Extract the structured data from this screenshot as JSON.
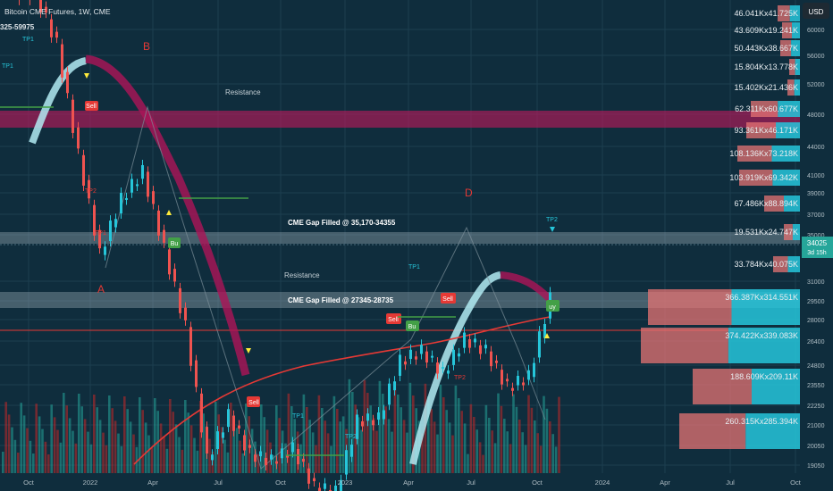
{
  "header": {
    "symbol_title": "Bitcoin CME Futures, 1W, CME",
    "range_text": "325-59975",
    "currency": "USD"
  },
  "price_axis": {
    "ticks": [
      "60000",
      "56000",
      "52000",
      "48000",
      "44000",
      "41000",
      "39000",
      "37000",
      "35000",
      "31000",
      "29500",
      "28000",
      "26400",
      "24800",
      "23550",
      "22250",
      "21000",
      "20050",
      "19050"
    ],
    "current_price": "34025",
    "countdown": "3d 15h"
  },
  "time_axis": {
    "ticks": [
      "Oct",
      "2022",
      "Apr",
      "Jul",
      "Oct",
      "2023",
      "Apr",
      "Jul",
      "Oct",
      "2024",
      "Apr",
      "Jul",
      "Oct"
    ]
  },
  "zones": [
    {
      "label": "Resistance"
    },
    {
      "label": "CME Gap Filled @ 35,170-34355"
    },
    {
      "label": "Resistance"
    },
    {
      "label": "CME Gap Filled @ 27345-28735"
    }
  ],
  "wave_labels": [
    "B",
    "A",
    "D"
  ],
  "signals": [
    "Sell",
    "Bu",
    "Sell",
    "Sell",
    "Bu",
    "uy",
    "Sell"
  ],
  "tp_labels": [
    "TP1",
    "TP1",
    "TP2",
    "TP1",
    "TP1",
    "TP2",
    "TP1",
    "TP2",
    "TP2"
  ],
  "volume_profile": [
    "46.041Kx41.725K",
    "43.609Kx19.241K",
    "50.443Kx38.667K",
    "15.804Kx13.778K",
    "15.402Kx21.436K",
    "62.311Kx60.677K",
    "93.361Kx46.171K",
    "108.136Kx73.218K",
    "103.919Kx69.342K",
    "67.486Kx88.894K",
    "19.531Kx24.747K",
    "33.784Kx40.075K",
    "366.387Kx314.551K",
    "374.422Kx339.083K",
    "188.609Kx209.11K",
    "260.315Kx285.394K"
  ],
  "colors": {
    "background": "#0f2d3d",
    "up": "#26c6da",
    "down": "#ef5350",
    "zone_pink": "#c2185b",
    "zone_gray": "#b0bec5",
    "ribbon_up": "#b2ebf2",
    "ribbon_down": "#ad1457",
    "ma": "#e53935"
  },
  "chart_data": {
    "type": "candlestick",
    "title": "Bitcoin CME Futures, 1W, CME",
    "x_range": [
      "2021-10",
      "2024-11"
    ],
    "y_range": [
      18500,
      63000
    ],
    "current_price": 34025,
    "series": [
      {
        "name": "",
        "x": [
          "2021-10",
          "2021-11",
          "2021-12",
          "2022-01",
          "2022-02",
          "2022-03",
          "2022-04",
          "2022-05",
          "2022-06",
          "2022-07",
          "2022-08",
          "2022-09",
          "2022-10",
          "2022-11",
          "2022-12",
          "2023-01",
          "2023-02",
          "2023-03",
          "2023-04",
          "2023-05",
          "2023-06",
          "2023-07",
          "2023-08",
          "2023-09",
          "2023-10"
        ],
        "close": [
          61500,
          57000,
          47000,
          38000,
          43000,
          45500,
          38500,
          31500,
          19500,
          23500,
          20000,
          19400,
          20500,
          17000,
          16600,
          23000,
          23200,
          28400,
          29300,
          27300,
          30400,
          29300,
          26000,
          27000,
          34025
        ]
      }
    ]
  }
}
